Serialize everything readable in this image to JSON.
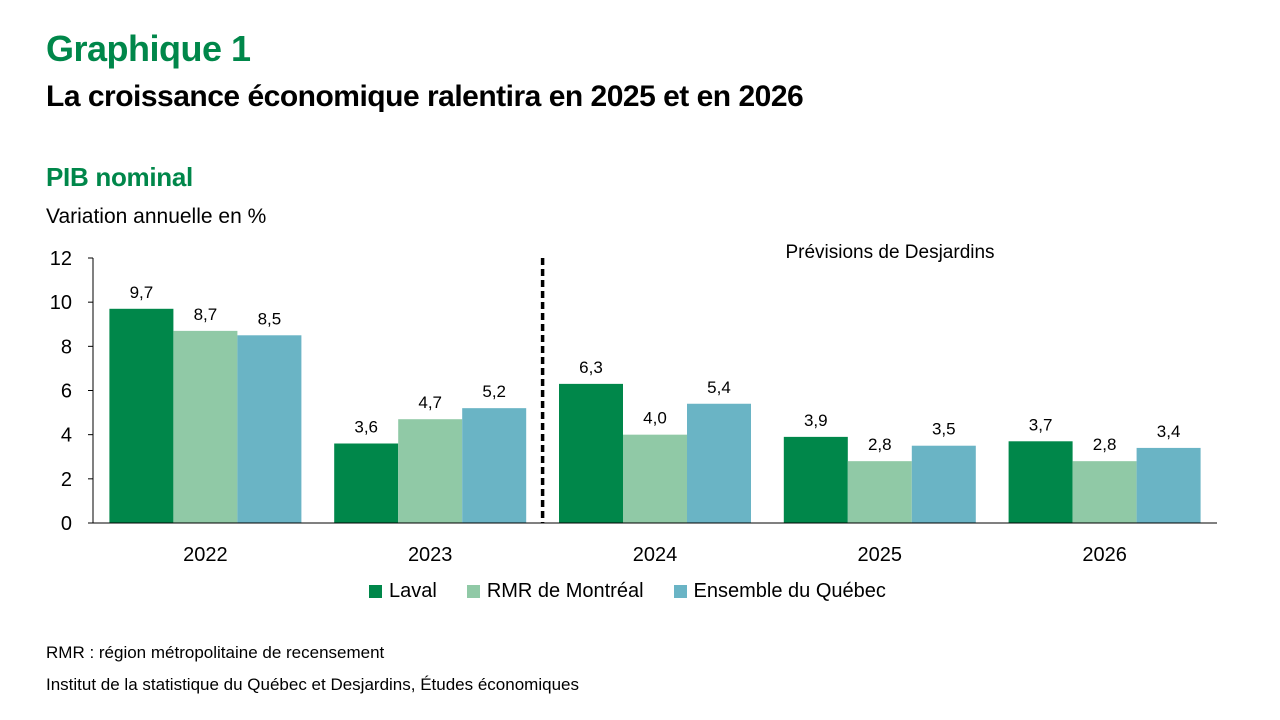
{
  "header": {
    "figure_label": "Graphique 1",
    "title": "La croissance économique ralentira en 2025 et en 2026",
    "subtitle": "PIB nominal",
    "unit_label": "Variation annuelle en %"
  },
  "footnotes": {
    "abbreviation": "RMR : région métropolitaine de recensement",
    "source": "Institut de la statistique du Québec et Desjardins, Études économiques"
  },
  "chart_data": {
    "type": "bar",
    "title": "PIB nominal",
    "ylabel": "Variation annuelle en %",
    "xlabel": "",
    "categories": [
      "2022",
      "2023",
      "2024",
      "2025",
      "2026"
    ],
    "series": [
      {
        "name": "Laval",
        "color": "#00874a",
        "values": [
          9.7,
          3.6,
          6.3,
          3.9,
          3.7
        ],
        "labels": [
          "9,7",
          "3,6",
          "6,3",
          "3,9",
          "3,7"
        ]
      },
      {
        "name": "RMR de Montréal",
        "color": "#90c9a6",
        "values": [
          8.7,
          4.7,
          4.0,
          2.8,
          2.8
        ],
        "labels": [
          "8,7",
          "4,7",
          "4,0",
          "2,8",
          "2,8"
        ]
      },
      {
        "name": "Ensemble du Québec",
        "color": "#6ab4c5",
        "values": [
          8.5,
          5.2,
          5.4,
          3.5,
          3.4
        ],
        "labels": [
          "8,5",
          "5,2",
          "5,4",
          "3,5",
          "3,4"
        ]
      }
    ],
    "ylim": [
      0,
      12
    ],
    "yticks": [
      0,
      2,
      4,
      6,
      8,
      10,
      12
    ],
    "grid": false,
    "legend_position": "bottom",
    "annotation": {
      "text": "Prévisions de Desjardins",
      "divider_between": [
        "2023",
        "2024"
      ],
      "divider_style": "dashed"
    }
  }
}
